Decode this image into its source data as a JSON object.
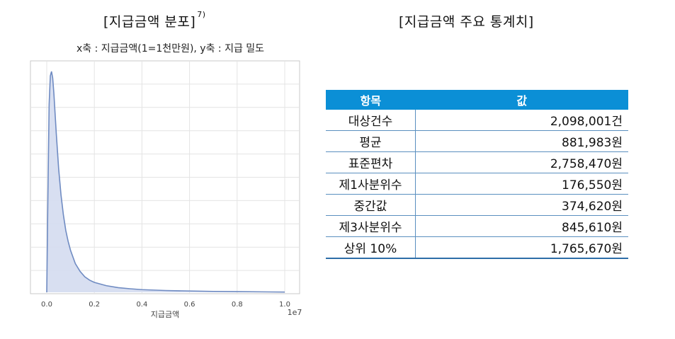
{
  "left_title": {
    "text": "[지급금액 분포]",
    "footnote": "7)"
  },
  "axis_description": "x축 : 지급금액(1=1천만원), y축 : 지급 밀도",
  "right_title": "[지급금액 주요 통계치]",
  "chart_data": {
    "type": "area",
    "xlabel": "지급금액",
    "x_multiplier": "1e7",
    "xlim": [
      0.0,
      1.0
    ],
    "x_ticks": [
      "0.0",
      "0.2",
      "0.4",
      "0.6",
      "0.8",
      "1.0"
    ],
    "grid": true,
    "fill_color": "#d4dcef",
    "line_color": "#6f8bc2",
    "series": [
      {
        "x": [
          0.0,
          0.005,
          0.01,
          0.015,
          0.02,
          0.025,
          0.03,
          0.04,
          0.05,
          0.06,
          0.07,
          0.08,
          0.09,
          0.1,
          0.12,
          0.14,
          0.16,
          0.18,
          0.2,
          0.25,
          0.3,
          0.35,
          0.4,
          0.5,
          0.6,
          0.7,
          0.8,
          0.9,
          1.0
        ],
        "y": [
          0.0,
          0.45,
          0.85,
          0.98,
          1.0,
          0.97,
          0.9,
          0.72,
          0.56,
          0.44,
          0.35,
          0.28,
          0.23,
          0.19,
          0.13,
          0.095,
          0.07,
          0.055,
          0.045,
          0.03,
          0.021,
          0.016,
          0.012,
          0.008,
          0.006,
          0.004,
          0.003,
          0.002,
          0.001
        ]
      }
    ]
  },
  "table": {
    "headers": [
      "항목",
      "값"
    ],
    "rows": [
      {
        "label": "대상건수",
        "value": "2,098,001건"
      },
      {
        "label": "평균",
        "value": "881,983원"
      },
      {
        "label": "표준편차",
        "value": "2,758,470원"
      },
      {
        "label": "제1사분위수",
        "value": "176,550원"
      },
      {
        "label": "중간값",
        "value": "374,620원"
      },
      {
        "label": "제3사분위수",
        "value": "845,610원"
      },
      {
        "label": "상위 10%",
        "value": "1,765,670원"
      }
    ]
  }
}
